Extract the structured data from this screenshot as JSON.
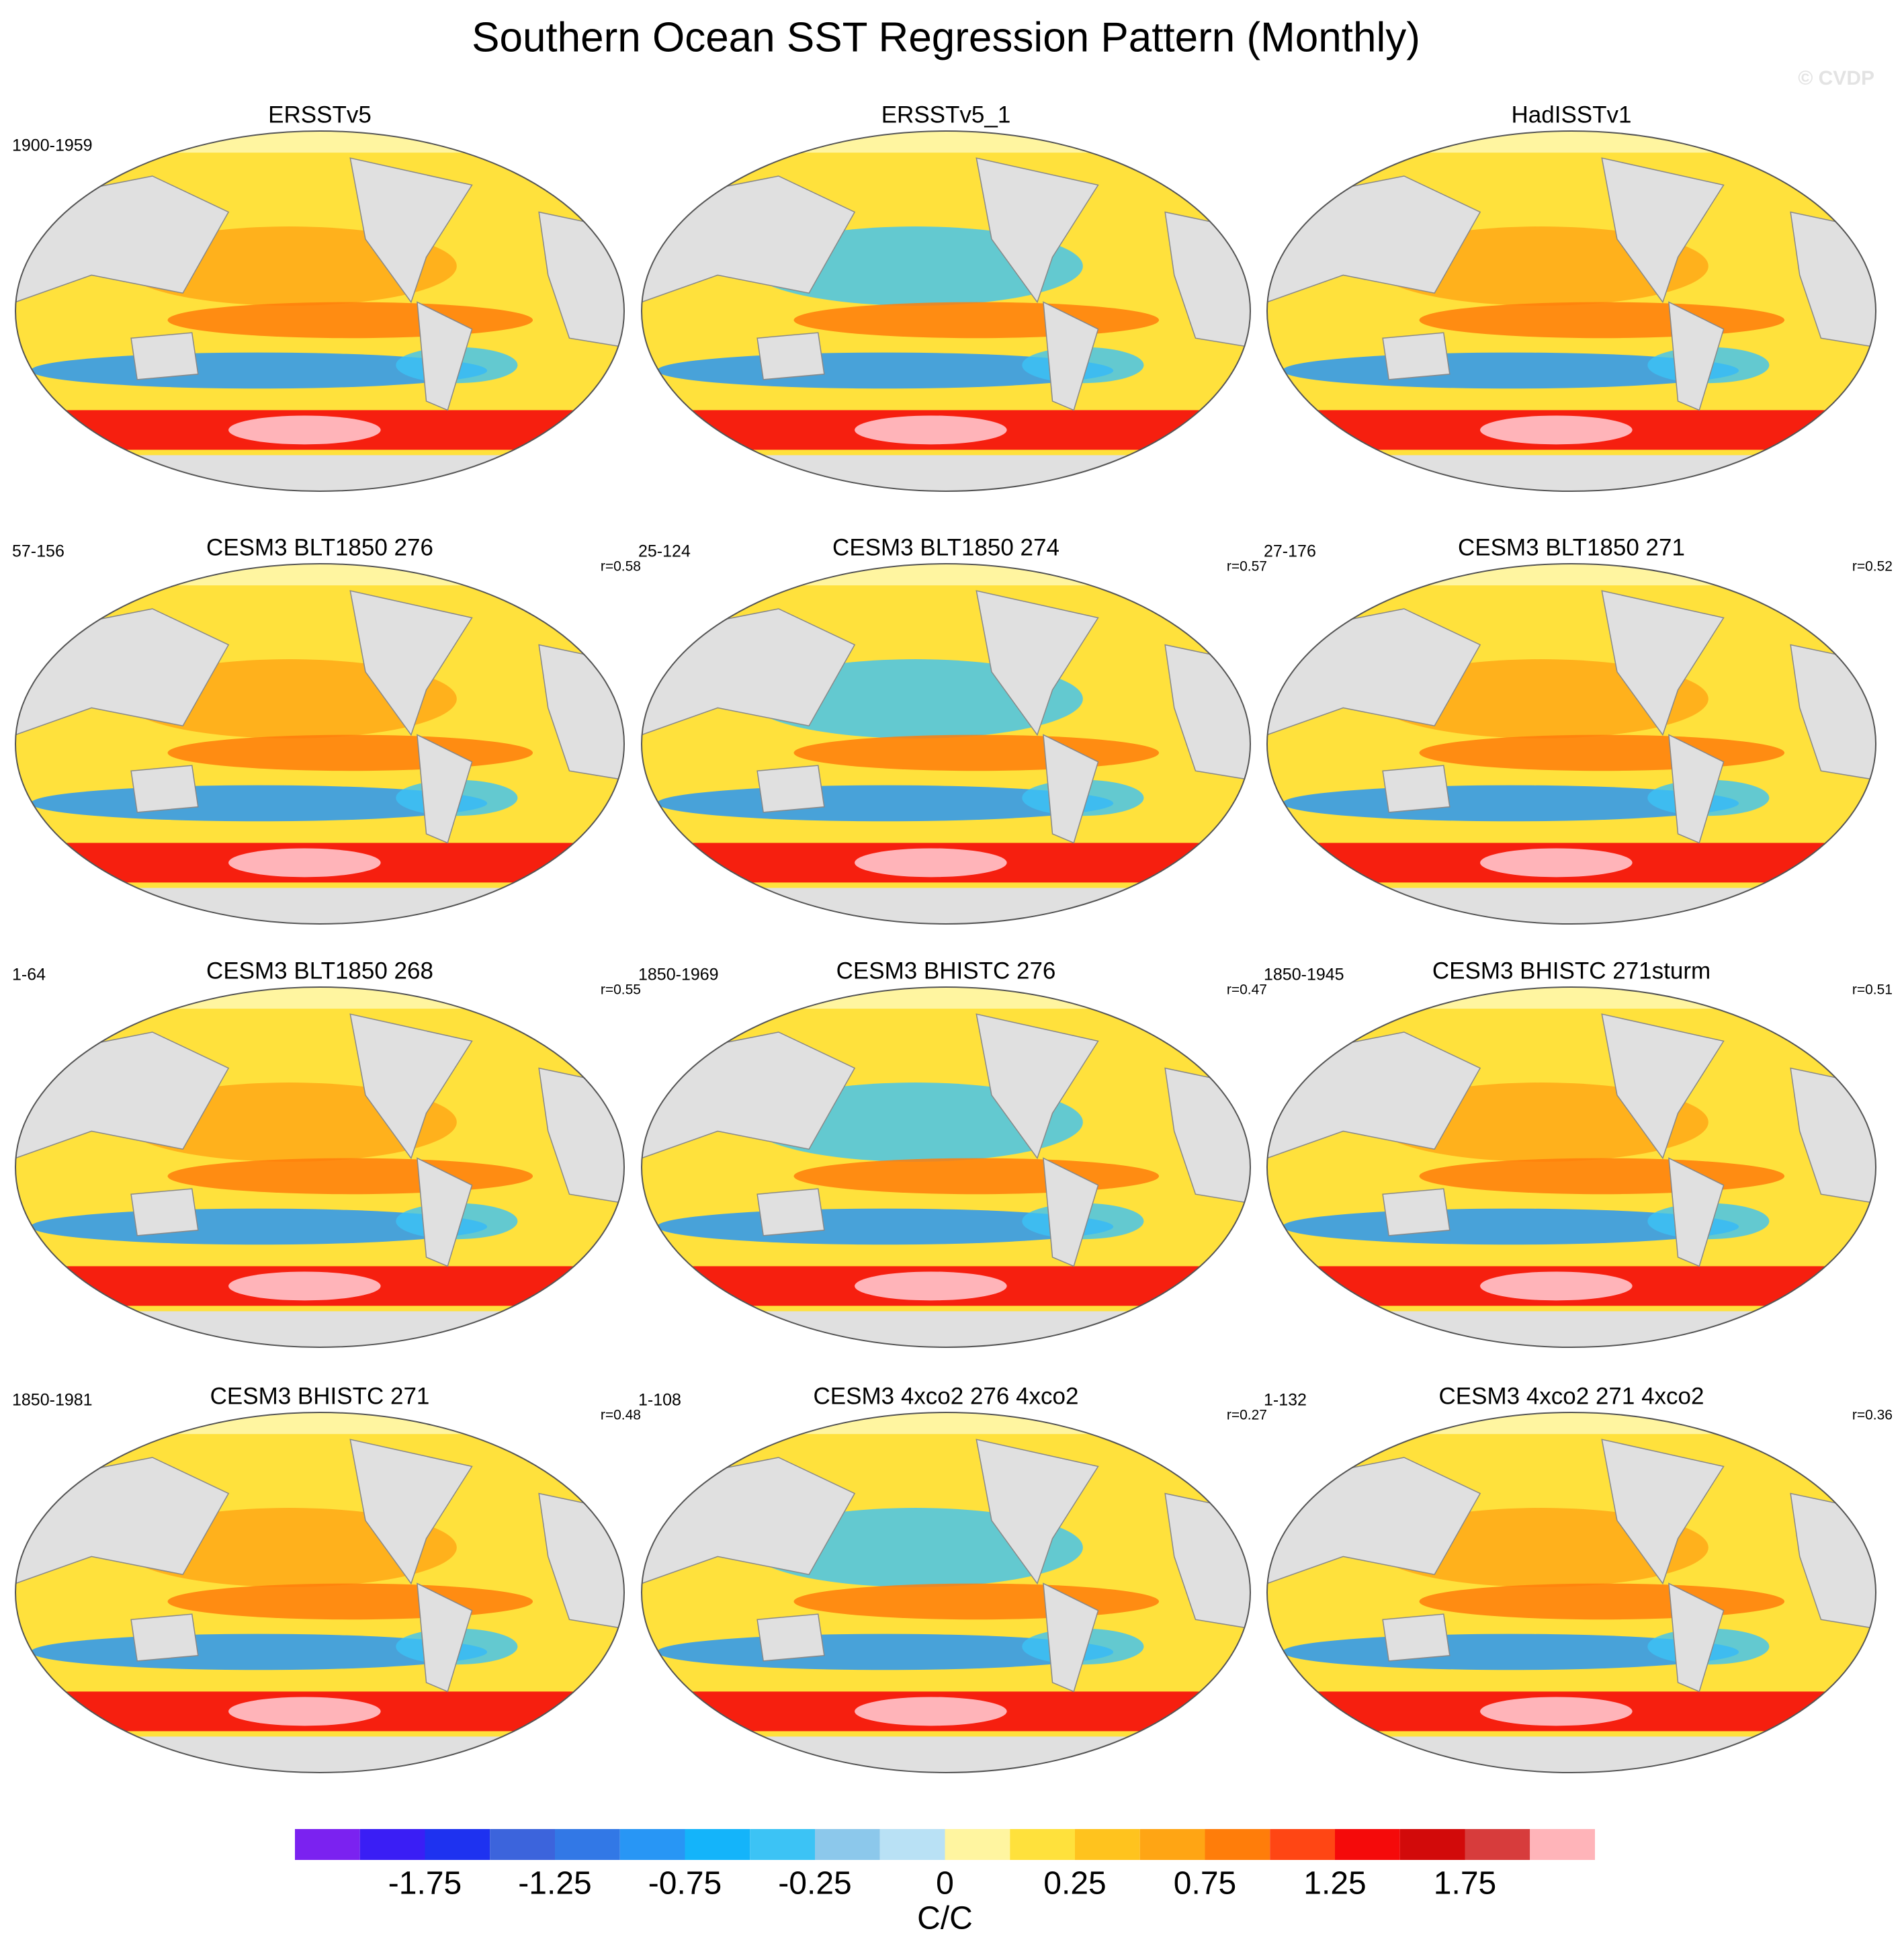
{
  "chart_data": {
    "type": "map-panels",
    "title": "Southern Ocean SST Regression Pattern (Monthly)",
    "copyright": "© CVDP",
    "panels": [
      {
        "title": "ERSSTv5",
        "period": "1900-1959"
      },
      {
        "title": "ERSSTv5_1"
      },
      {
        "title": "HadISSTv1"
      },
      {
        "title": "CESM3 BLT1850 276",
        "period": "57-156",
        "r": "r=0.58"
      },
      {
        "title": "CESM3 BLT1850 274",
        "period": "25-124",
        "r": "r=0.57"
      },
      {
        "title": "CESM3 BLT1850 271",
        "period": "27-176",
        "r": "r=0.52"
      },
      {
        "title": "CESM3 BLT1850 268",
        "period": "1-64",
        "r": "r=0.55"
      },
      {
        "title": "CESM3 BHISTC 276",
        "period": "1850-1969",
        "r": "r=0.47"
      },
      {
        "title": "CESM3 BHISTC 271sturm",
        "period": "1850-1945",
        "r": "r=0.51"
      },
      {
        "title": "CESM3 BHISTC 271",
        "period": "1850-1981",
        "r": "r=0.48"
      },
      {
        "title": "CESM3 4xco2 276 4xco2",
        "period": "1-108",
        "r": "r=0.27"
      },
      {
        "title": "CESM3 4xco2 271 4xco2",
        "period": "1-132",
        "r": "r=0.36"
      }
    ],
    "colorbar": {
      "label": "C/C",
      "levels": [
        -2,
        -1.75,
        -1.5,
        -1.25,
        -1,
        -0.75,
        -0.5,
        -0.25,
        -0.1,
        0,
        0.1,
        0.25,
        0.5,
        0.75,
        1,
        1.25,
        1.5,
        1.75,
        2
      ],
      "ticks": [
        -1.75,
        -1.25,
        -0.75,
        -0.25,
        0,
        0.25,
        0.75,
        1.25,
        1.75
      ],
      "colors": [
        "#7b22f0",
        "#3a1ef5",
        "#1e32f0",
        "#3c64dc",
        "#3278e6",
        "#2896f5",
        "#14b4fa",
        "#3cc3f5",
        "#8cc8eb",
        "#b9e1f5",
        "#fff5a0",
        "#ffe13c",
        "#ffc31e",
        "#ffa514",
        "#ff7d0a",
        "#ff4614",
        "#f50a0a",
        "#d20a0a",
        "#d73c3c",
        "#ffb4b9"
      ]
    }
  }
}
